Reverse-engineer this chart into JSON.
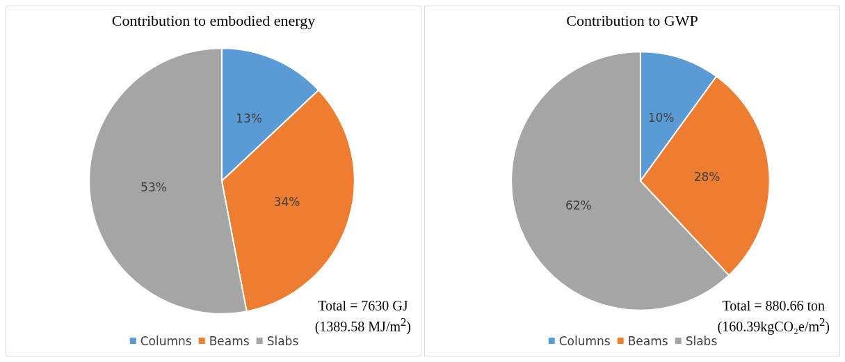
{
  "chart_data": [
    {
      "type": "pie",
      "title": "Contribution to embodied energy",
      "categories": [
        "Columns",
        "Beams",
        "Slabs"
      ],
      "values": [
        13,
        34,
        53
      ],
      "colors": [
        "#5b9bd5",
        "#ed7d31",
        "#a5a5a5"
      ],
      "value_labels": [
        "13%",
        "34%",
        "53%"
      ],
      "legend": "bottom",
      "annotations": [
        "Total = 7630 GJ",
        "(1389.58 MJ/m$^{2}$)"
      ]
    },
    {
      "type": "pie",
      "title": "Contribution to GWP",
      "categories": [
        "Columns",
        "Beams",
        "Slabs"
      ],
      "values": [
        10,
        28,
        62
      ],
      "colors": [
        "#5b9bd5",
        "#ed7d31",
        "#a5a5a5"
      ],
      "value_labels": [
        "10%",
        "28%",
        "62%"
      ],
      "legend": "bottom",
      "annotations": [
        "Total = 880.66 ton",
        "(160.39kgCO₂e/m$^{2}$)"
      ]
    }
  ]
}
